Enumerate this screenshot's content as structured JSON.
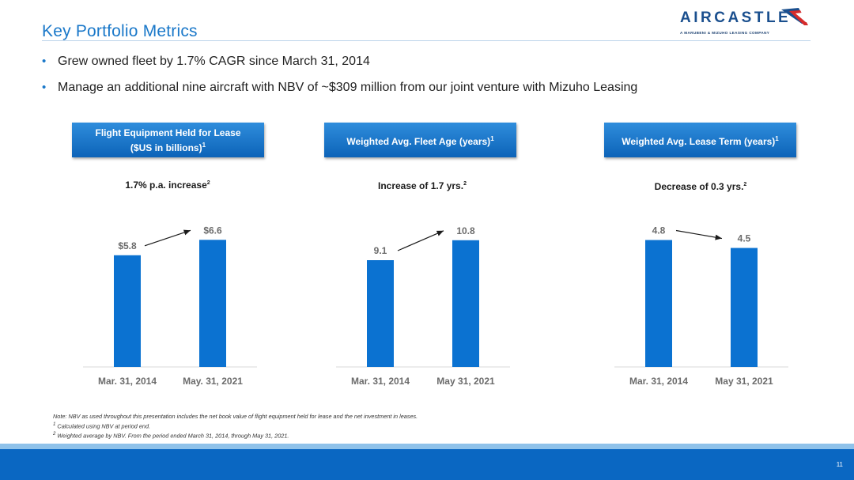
{
  "slide": {
    "title": "Key Portfolio Metrics",
    "page_number": "11"
  },
  "logo": {
    "word": "AIRCASTLE",
    "tagline": "A MARUBENI & MIZUHO LEASING COMPANY",
    "colors": {
      "navy": "#1a4f8e",
      "red": "#d52b2b",
      "blue": "#1a78c9"
    }
  },
  "bullets": [
    "Grew owned fleet by 1.7% CAGR since March 31, 2014",
    "Manage an additional nine aircraft with NBV of ~$309 million from our joint venture with Mizuho Leasing"
  ],
  "panels": [
    {
      "header_line1": "Flight Equipment Held for Lease",
      "header_line2": "($US in billions)",
      "header_sup": "1",
      "subtitle": "1.7% p.a. increase",
      "subtitle_sup": "2"
    },
    {
      "header_line1": "Weighted Avg. Fleet Age (years)",
      "header_line2": "",
      "header_sup": "1",
      "subtitle": "Increase of 1.7 yrs.",
      "subtitle_sup": "2"
    },
    {
      "header_line1": "Weighted Avg. Lease Term (years)",
      "header_line2": "",
      "header_sup": "1",
      "subtitle": "Decrease of 0.3 yrs.",
      "subtitle_sup": "2"
    }
  ],
  "chart_data": [
    {
      "type": "bar",
      "title": "Flight Equipment Held for Lease ($US in billions)",
      "categories": [
        "Mar. 31, 2014",
        "May. 31, 2021"
      ],
      "values": [
        5.8,
        6.6
      ],
      "value_labels": [
        "$5.8",
        "$6.6"
      ],
      "annotation": "1.7% p.a. increase",
      "ylim": [
        0,
        9.2
      ],
      "color": "#0b72d1",
      "grid": false
    },
    {
      "type": "bar",
      "title": "Weighted Avg. Fleet Age (years)",
      "categories": [
        "Mar. 31, 2014",
        "May 31, 2021"
      ],
      "values": [
        9.1,
        10.8
      ],
      "value_labels": [
        "9.1",
        "10.8"
      ],
      "annotation": "Increase of 1.7 yrs.",
      "ylim": [
        0,
        15.1
      ],
      "color": "#0b72d1",
      "grid": false
    },
    {
      "type": "bar",
      "title": "Weighted Avg. Lease Term (years)",
      "categories": [
        "Mar. 31, 2014",
        "May 31, 2021"
      ],
      "values": [
        4.8,
        4.5
      ],
      "value_labels": [
        "4.8",
        "4.5"
      ],
      "annotation": "Decrease of 0.3 yrs.",
      "ylim": [
        0,
        6.7
      ],
      "color": "#0b72d1",
      "grid": false
    }
  ],
  "notes": {
    "note": "Note: NBV as used throughout this presentation includes the net book value of flight equipment held for lease and the net investment in leases.",
    "fn1_sup": "1",
    "fn1": "Calculated using NBV at period end.",
    "fn2_sup": "2",
    "fn2": "Weighted average by NBV.  From the period ended March 31, 2014, through May 31, 2021."
  }
}
